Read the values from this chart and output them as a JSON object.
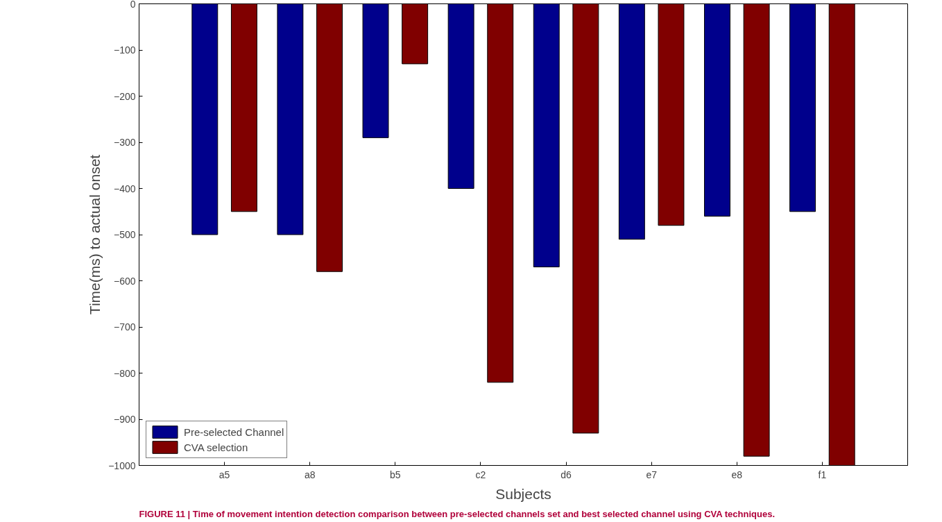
{
  "chart_data": {
    "type": "bar",
    "categories": [
      "a5",
      "a8",
      "b5",
      "c2",
      "d6",
      "e7",
      "e8",
      "f1"
    ],
    "series": [
      {
        "name": "Pre-selected Channel",
        "color": "#00008c",
        "values": [
          -500,
          -500,
          -290,
          -400,
          -570,
          -510,
          -460,
          -450
        ]
      },
      {
        "name": "CVA selection",
        "color": "#800000",
        "values": [
          -450,
          -580,
          -130,
          -820,
          -930,
          -480,
          -980,
          -1000
        ]
      }
    ],
    "xlabel": "Subjects",
    "ylabel": "Time(ms) to actual onset",
    "ylim": [
      -1000,
      0
    ],
    "yticks": [
      -1000,
      -900,
      -800,
      -700,
      -600,
      -500,
      -400,
      -300,
      -200,
      -100,
      0
    ],
    "legend": "bottom left",
    "grid": false,
    "annotations": [
      "FIGURE 11 | Time of movement intention detection comparison between pre-selected channels set and best selected channel using CVA techniques."
    ]
  }
}
